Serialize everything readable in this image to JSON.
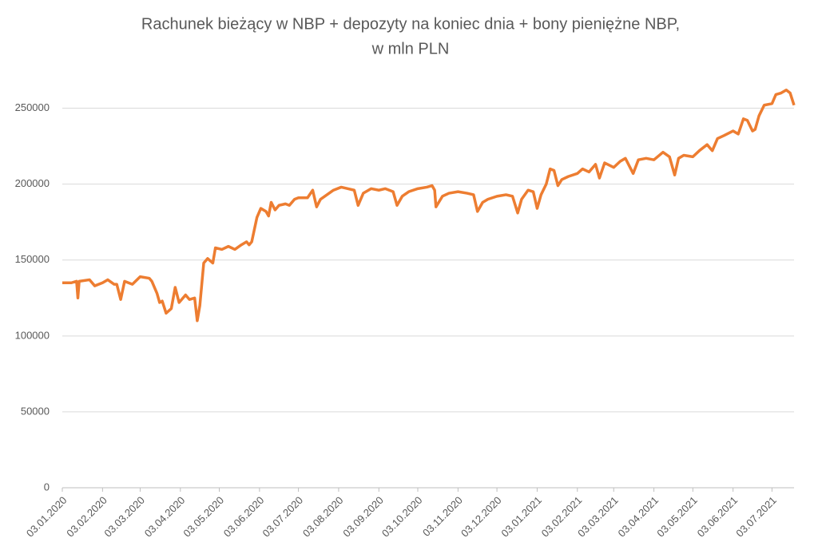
{
  "chart_data": {
    "type": "line",
    "title": [
      "Rachunek bieżący w NBP + depozyty na koniec dnia + bony pieniężne NBP,",
      "w mln PLN"
    ],
    "x": [
      "03.01.2020",
      "10.01.2020",
      "14.01.2020",
      "15.01.2020",
      "16.01.2020",
      "24.01.2020",
      "28.01.2020",
      "03.02.2020",
      "07.02.2020",
      "12.02.2020",
      "14.02.2020",
      "17.02.2020",
      "20.02.2020",
      "26.02.2020",
      "03.03.2020",
      "10.03.2020",
      "12.03.2020",
      "16.03.2020",
      "18.03.2020",
      "20.03.2020",
      "23.03.2020",
      "27.03.2020",
      "30.03.2020",
      "02.04.2020",
      "07.04.2020",
      "10.04.2020",
      "14.04.2020",
      "16.04.2020",
      "18.04.2020",
      "21.04.2020",
      "24.04.2020",
      "28.04.2020",
      "30.04.2020",
      "05.05.2020",
      "10.05.2020",
      "15.05.2020",
      "20.05.2020",
      "24.05.2020",
      "26.05.2020",
      "28.05.2020",
      "01.06.2020",
      "04.06.2020",
      "08.06.2020",
      "10.06.2020",
      "12.06.2020",
      "15.06.2020",
      "18.06.2020",
      "23.06.2020",
      "26.06.2020",
      "30.06.2020",
      "03.07.2020",
      "10.07.2020",
      "14.07.2020",
      "17.07.2020",
      "20.07.2020",
      "25.07.2020",
      "30.07.2020",
      "05.08.2020",
      "10.08.2020",
      "15.08.2020",
      "18.08.2020",
      "22.08.2020",
      "28.08.2020",
      "03.09.2020",
      "08.09.2020",
      "14.09.2020",
      "17.09.2020",
      "21.09.2020",
      "26.09.2020",
      "03.10.2020",
      "10.10.2020",
      "14.10.2020",
      "16.10.2020",
      "17.10.2020",
      "22.10.2020",
      "27.10.2020",
      "03.11.2020",
      "10.11.2020",
      "15.11.2020",
      "18.11.2020",
      "22.11.2020",
      "26.11.2020",
      "03.12.2020",
      "10.12.2020",
      "15.12.2020",
      "19.12.2020",
      "22.12.2020",
      "27.12.2020",
      "31.12.2020",
      "03.01.2021",
      "06.01.2021",
      "10.01.2021",
      "13.01.2021",
      "16.01.2021",
      "19.01.2021",
      "22.01.2021",
      "27.01.2021",
      "03.02.2021",
      "07.02.2021",
      "12.02.2021",
      "17.02.2021",
      "20.02.2021",
      "24.02.2021",
      "03.03.2021",
      "08.03.2021",
      "12.03.2021",
      "15.03.2021",
      "18.03.2021",
      "22.03.2021",
      "28.03.2021",
      "03.04.2021",
      "10.04.2021",
      "15.04.2021",
      "19.04.2021",
      "22.04.2021",
      "26.04.2021",
      "03.05.2021",
      "08.05.2021",
      "14.05.2021",
      "18.05.2021",
      "22.05.2021",
      "27.05.2021",
      "03.06.2021",
      "07.06.2021",
      "11.06.2021",
      "14.06.2021",
      "18.06.2021",
      "20.06.2021",
      "23.06.2021",
      "27.06.2021",
      "03.07.2021",
      "06.07.2021",
      "10.07.2021",
      "14.07.2021",
      "17.07.2021",
      "20.07.2021"
    ],
    "series": [
      {
        "name": "Rachunek bieżący",
        "color": "#ed7d31",
        "values": [
          135000,
          135000,
          136000,
          125000,
          136000,
          137000,
          133000,
          135000,
          137000,
          134000,
          134000,
          124000,
          136000,
          134000,
          139000,
          138000,
          136000,
          128000,
          122000,
          123000,
          115000,
          118000,
          132000,
          122000,
          127000,
          124000,
          125000,
          110000,
          120000,
          148000,
          151000,
          148000,
          158000,
          157000,
          159000,
          157000,
          160000,
          162000,
          160000,
          162000,
          178000,
          184000,
          182000,
          179000,
          188000,
          183000,
          186000,
          187000,
          186000,
          190000,
          191000,
          191000,
          196000,
          185000,
          190000,
          193000,
          196000,
          198000,
          197000,
          196000,
          186000,
          194000,
          197000,
          196000,
          197000,
          195000,
          186000,
          192000,
          195000,
          197000,
          198000,
          199000,
          196000,
          185000,
          192000,
          194000,
          195000,
          194000,
          193000,
          182000,
          188000,
          190000,
          192000,
          193000,
          192000,
          181000,
          190000,
          196000,
          195000,
          184000,
          193000,
          200000,
          210000,
          209000,
          199000,
          203000,
          205000,
          207000,
          210000,
          208000,
          213000,
          204000,
          214000,
          211000,
          215000,
          217000,
          212000,
          207000,
          216000,
          217000,
          216000,
          221000,
          218000,
          206000,
          217000,
          219000,
          218000,
          222000,
          226000,
          222000,
          230000,
          232000,
          235000,
          233000,
          243000,
          242000,
          235000,
          236000,
          245000,
          252000,
          253000,
          259000,
          260000,
          262000,
          260000,
          252000
        ]
      }
    ],
    "xlim": [
      "03.01.2020",
      "20.07.2021"
    ],
    "xticks": [
      "03.01.2020",
      "03.02.2020",
      "03.03.2020",
      "03.04.2020",
      "03.05.2020",
      "03.06.2020",
      "03.07.2020",
      "03.08.2020",
      "03.09.2020",
      "03.10.2020",
      "03.11.2020",
      "03.12.2020",
      "03.01.2021",
      "03.02.2021",
      "03.03.2021",
      "03.04.2021",
      "03.05.2021",
      "03.06.2021",
      "03.07.2021"
    ],
    "ylim": [
      0,
      275000
    ],
    "yticks": [
      0,
      50000,
      100000,
      150000,
      200000,
      250000
    ],
    "grid": true
  }
}
